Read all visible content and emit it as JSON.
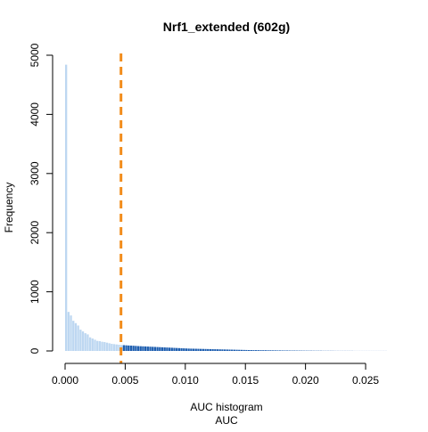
{
  "chart_data": {
    "type": "bar",
    "title": "Nrf1_extended (602g)",
    "xlabel": "AUC",
    "subtitle": "AUC histogram",
    "ylabel": "Frequency",
    "xlim": [
      0,
      0.027
    ],
    "ylim": [
      0,
      5000
    ],
    "x_ticks": [
      0.0,
      0.005,
      0.01,
      0.015,
      0.02,
      0.025
    ],
    "x_tick_labels": [
      "0.000",
      "0.005",
      "0.010",
      "0.015",
      "0.020",
      "0.025"
    ],
    "y_ticks": [
      0,
      1000,
      2000,
      3000,
      4000,
      5000
    ],
    "y_tick_labels": [
      "0",
      "1000",
      "2000",
      "3000",
      "4000",
      "5000"
    ],
    "threshold": 0.00465,
    "bin_width": 0.0002,
    "bins_start": 0.0,
    "counts": [
      4840,
      660,
      600,
      510,
      470,
      430,
      360,
      330,
      300,
      280,
      230,
      210,
      190,
      170,
      165,
      155,
      150,
      140,
      130,
      120,
      115,
      110,
      105,
      100,
      98,
      95,
      92,
      90,
      88,
      85,
      82,
      80,
      78,
      76,
      74,
      72,
      70,
      68,
      66,
      64,
      62,
      60,
      58,
      56,
      54,
      52,
      50,
      48,
      46,
      44,
      42,
      40,
      39,
      38,
      37,
      36,
      35,
      34,
      33,
      32,
      31,
      30,
      29,
      28,
      27,
      26,
      25,
      24,
      23,
      22,
      21,
      20,
      19,
      18,
      17,
      16,
      15,
      15,
      14,
      14,
      13,
      13,
      12,
      12,
      11,
      11,
      10,
      10,
      9,
      9,
      8,
      8,
      8,
      7,
      7,
      7,
      6,
      6,
      6,
      5,
      5,
      5,
      5,
      4,
      4,
      4,
      4,
      3,
      3,
      3,
      3,
      3,
      2,
      2,
      2,
      2,
      2,
      2,
      2,
      2,
      1,
      1,
      1,
      1,
      1,
      1,
      1,
      1,
      1,
      1,
      1,
      1,
      1,
      1
    ],
    "colors": {
      "below_threshold": "#bdd7f1",
      "above_threshold": "#1f5fb0",
      "threshold_line": "#f28c1b",
      "axis": "#000000"
    },
    "grid": false,
    "legend": "none"
  }
}
